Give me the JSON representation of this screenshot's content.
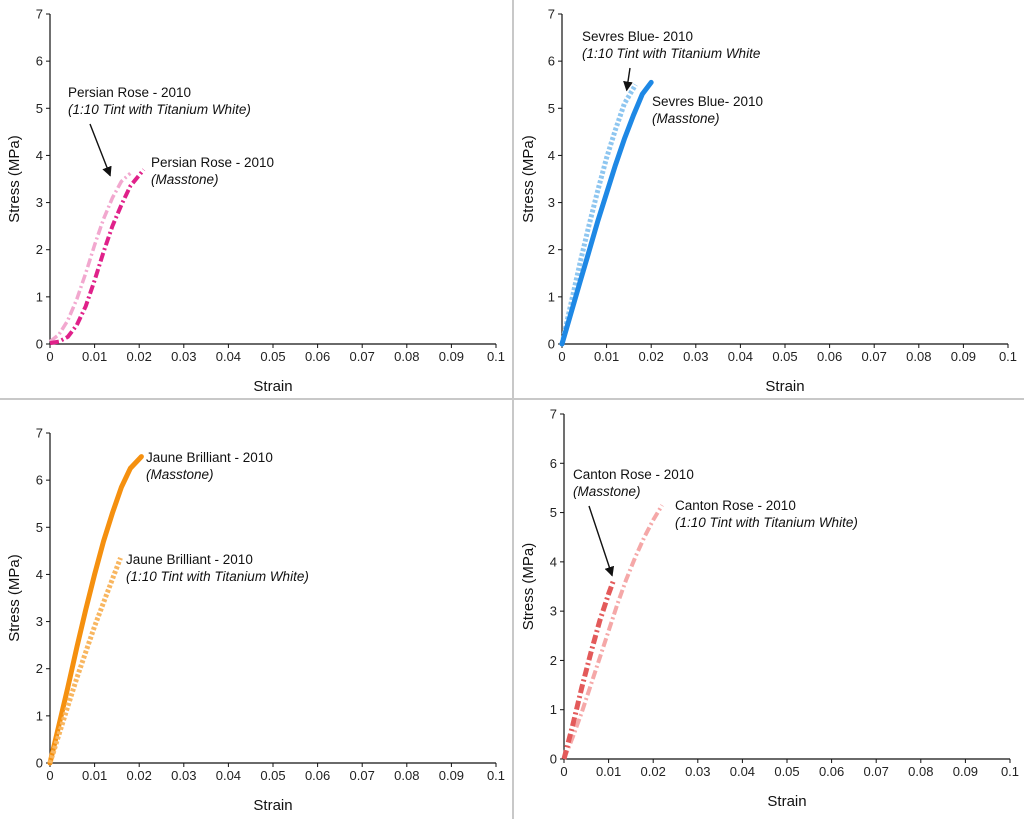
{
  "colors": {
    "persian_masstone": "#e0218a",
    "persian_tint": "#f2a8cf",
    "sevres_masstone": "#1e88e5",
    "sevres_tint": "#8ec6f0",
    "jaune_masstone": "#f5900f",
    "jaune_tint": "#f8b660",
    "canton_masstone": "#e35a5a",
    "canton_tint": "#f5a8a8",
    "axis": "#111111",
    "divider": "#c8c8c8"
  },
  "chart_data": [
    {
      "type": "line",
      "xlabel": "Strain",
      "ylabel": "Stress (MPa)",
      "xlim": [
        0,
        0.1
      ],
      "ylim": [
        0,
        7
      ],
      "x_ticks": [
        "0",
        "0.01",
        "0.02",
        "0.03",
        "0.04",
        "0.05",
        "0.06",
        "0.07",
        "0.08",
        "0.09",
        "0.1"
      ],
      "y_ticks": [
        "0",
        "1",
        "2",
        "3",
        "4",
        "5",
        "6",
        "7"
      ],
      "series": [
        {
          "style": "dashdot",
          "width": 3.5,
          "color_key": "persian_tint",
          "points": [
            [
              0,
              0.05
            ],
            [
              0.002,
              0.2
            ],
            [
              0.004,
              0.5
            ],
            [
              0.006,
              0.95
            ],
            [
              0.008,
              1.5
            ],
            [
              0.01,
              2.1
            ],
            [
              0.012,
              2.65
            ],
            [
              0.014,
              3.1
            ],
            [
              0.016,
              3.45
            ],
            [
              0.018,
              3.62
            ]
          ]
        },
        {
          "style": "dashdot",
          "width": 4,
          "color_key": "persian_masstone",
          "points": [
            [
              0,
              0.02
            ],
            [
              0.002,
              0.05
            ],
            [
              0.004,
              0.15
            ],
            [
              0.006,
              0.4
            ],
            [
              0.008,
              0.8
            ],
            [
              0.01,
              1.35
            ],
            [
              0.012,
              1.95
            ],
            [
              0.014,
              2.5
            ],
            [
              0.016,
              2.95
            ],
            [
              0.018,
              3.35
            ],
            [
              0.021,
              3.7
            ]
          ]
        }
      ],
      "annotations": [
        {
          "id": "a1",
          "line1": "Persian Rose - 2010",
          "line2": "(1:10 Tint with Titanium White)",
          "has_arrow": true,
          "arrow_to": [
            0.0135,
            3.57
          ]
        },
        {
          "id": "a2",
          "line1": "Persian Rose - 2010",
          "line2": "(Masstone)",
          "has_arrow": false
        }
      ]
    },
    {
      "type": "line",
      "xlabel": "Strain",
      "ylabel": "Stress (MPa)",
      "xlim": [
        0,
        0.1
      ],
      "ylim": [
        0,
        7
      ],
      "x_ticks": [
        "0",
        "0.01",
        "0.02",
        "0.03",
        "0.04",
        "0.05",
        "0.06",
        "0.07",
        "0.08",
        "0.09",
        "0.1"
      ],
      "y_ticks": [
        "0",
        "1",
        "2",
        "3",
        "4",
        "5",
        "6",
        "7"
      ],
      "series": [
        {
          "style": "dotted",
          "width": 5,
          "color_key": "sevres_tint",
          "points": [
            [
              0,
              0
            ],
            [
              0.002,
              0.85
            ],
            [
              0.004,
              1.7
            ],
            [
              0.006,
              2.5
            ],
            [
              0.008,
              3.25
            ],
            [
              0.01,
              3.95
            ],
            [
              0.012,
              4.55
            ],
            [
              0.014,
              5.1
            ],
            [
              0.0165,
              5.5
            ]
          ]
        },
        {
          "style": "solid",
          "width": 5,
          "color_key": "sevres_masstone",
          "points": [
            [
              0,
              0
            ],
            [
              0.002,
              0.65
            ],
            [
              0.004,
              1.3
            ],
            [
              0.006,
              1.95
            ],
            [
              0.008,
              2.6
            ],
            [
              0.01,
              3.2
            ],
            [
              0.012,
              3.8
            ],
            [
              0.014,
              4.35
            ],
            [
              0.016,
              4.85
            ],
            [
              0.018,
              5.3
            ],
            [
              0.02,
              5.55
            ]
          ]
        }
      ],
      "annotations": [
        {
          "id": "a1",
          "line1": "Sevres Blue- 2010",
          "line2": "(1:10 Tint with Titanium White",
          "has_arrow": true,
          "arrow_to": [
            0.0145,
            5.38
          ]
        },
        {
          "id": "a2",
          "line1": "Sevres Blue- 2010",
          "line2": "(Masstone)",
          "has_arrow": false
        }
      ]
    },
    {
      "type": "line",
      "xlabel": "Strain",
      "ylabel": "Stress (MPa)",
      "xlim": [
        0,
        0.1
      ],
      "ylim": [
        0,
        7
      ],
      "x_ticks": [
        "0",
        "0.01",
        "0.02",
        "0.03",
        "0.04",
        "0.05",
        "0.06",
        "0.07",
        "0.08",
        "0.09",
        "0.1"
      ],
      "y_ticks": [
        "0",
        "1",
        "2",
        "3",
        "4",
        "5",
        "6",
        "7"
      ],
      "series": [
        {
          "style": "solid",
          "width": 5,
          "color_key": "jaune_masstone",
          "points": [
            [
              0,
              0
            ],
            [
              0.002,
              0.8
            ],
            [
              0.004,
              1.6
            ],
            [
              0.006,
              2.45
            ],
            [
              0.008,
              3.25
            ],
            [
              0.01,
              4.0
            ],
            [
              0.012,
              4.7
            ],
            [
              0.014,
              5.3
            ],
            [
              0.016,
              5.85
            ],
            [
              0.018,
              6.25
            ],
            [
              0.0205,
              6.5
            ]
          ]
        },
        {
          "style": "dotted",
          "width": 5,
          "color_key": "jaune_tint",
          "points": [
            [
              0,
              0
            ],
            [
              0.002,
              0.6
            ],
            [
              0.004,
              1.2
            ],
            [
              0.006,
              1.8
            ],
            [
              0.008,
              2.35
            ],
            [
              0.01,
              2.9
            ],
            [
              0.012,
              3.4
            ],
            [
              0.014,
              3.9
            ],
            [
              0.0158,
              4.35
            ]
          ]
        }
      ],
      "annotations": [
        {
          "id": "a1",
          "line1": "Jaune Brilliant - 2010",
          "line2": "(Masstone)",
          "has_arrow": false
        },
        {
          "id": "a2",
          "line1": "Jaune Brilliant - 2010",
          "line2": "(1:10 Tint with Titanium White)",
          "has_arrow": false
        }
      ]
    },
    {
      "type": "line",
      "xlabel": "Strain",
      "ylabel": "Stress (MPa)",
      "xlim": [
        0,
        0.1
      ],
      "ylim": [
        0,
        7
      ],
      "x_ticks": [
        "0",
        "0.01",
        "0.02",
        "0.03",
        "0.04",
        "0.05",
        "0.06",
        "0.07",
        "0.08",
        "0.09",
        "0.1"
      ],
      "y_ticks": [
        "0",
        "1",
        "2",
        "3",
        "4",
        "5",
        "6",
        "7"
      ],
      "series": [
        {
          "style": "dashdot",
          "width": 4,
          "color_key": "canton_tint",
          "points": [
            [
              0,
              0
            ],
            [
              0.002,
              0.45
            ],
            [
              0.004,
              0.95
            ],
            [
              0.006,
              1.5
            ],
            [
              0.008,
              2.05
            ],
            [
              0.01,
              2.6
            ],
            [
              0.012,
              3.15
            ],
            [
              0.014,
              3.65
            ],
            [
              0.016,
              4.1
            ],
            [
              0.018,
              4.5
            ],
            [
              0.02,
              4.85
            ],
            [
              0.022,
              5.15
            ]
          ]
        },
        {
          "style": "dashdot",
          "width": 5,
          "color_key": "canton_masstone",
          "points": [
            [
              0,
              0
            ],
            [
              0.002,
              0.7
            ],
            [
              0.004,
              1.45
            ],
            [
              0.006,
              2.15
            ],
            [
              0.008,
              2.8
            ],
            [
              0.01,
              3.35
            ],
            [
              0.011,
              3.6
            ]
          ]
        }
      ],
      "annotations": [
        {
          "id": "a1",
          "line1": "Canton Rose - 2010",
          "line2": "(Masstone)",
          "has_arrow": true,
          "arrow_to": [
            0.0108,
            3.72
          ]
        },
        {
          "id": "a2",
          "line1": "Canton Rose - 2010",
          "line2": "(1:10 Tint with Titanium White)",
          "has_arrow": false
        }
      ]
    }
  ]
}
